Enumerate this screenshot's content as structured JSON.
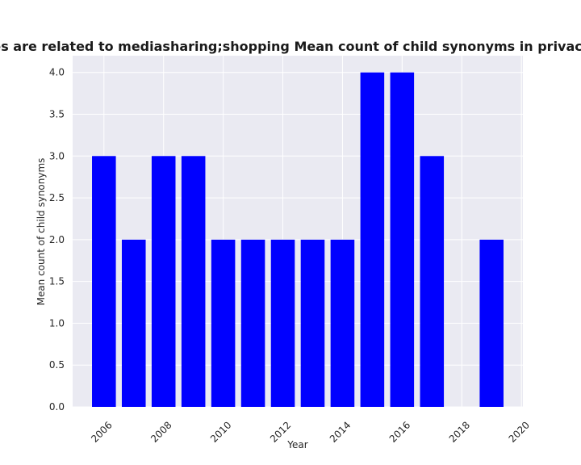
{
  "chart_data": {
    "type": "bar",
    "title": "Categories are related to mediasharing;shopping Mean count of child synonyms in privacy policies",
    "xlabel": "Year",
    "ylabel": "Mean count of child synonyms",
    "x": [
      2006,
      2007,
      2008,
      2009,
      2010,
      2011,
      2012,
      2013,
      2014,
      2015,
      2016,
      2017,
      2019
    ],
    "values": [
      3,
      2,
      3,
      3,
      2,
      2,
      2,
      2,
      2,
      4,
      4,
      3,
      2
    ],
    "xlim": [
      2004.95,
      2020.05
    ],
    "ylim": [
      0,
      4.2
    ],
    "xticks": [
      2006,
      2008,
      2010,
      2012,
      2014,
      2016,
      2018,
      2020
    ],
    "yticks": [
      0.0,
      0.5,
      1.0,
      1.5,
      2.0,
      2.5,
      3.0,
      3.5,
      4.0
    ],
    "bar_color": "#0000ff",
    "plot_background": "#eaeaf2",
    "grid": true
  }
}
